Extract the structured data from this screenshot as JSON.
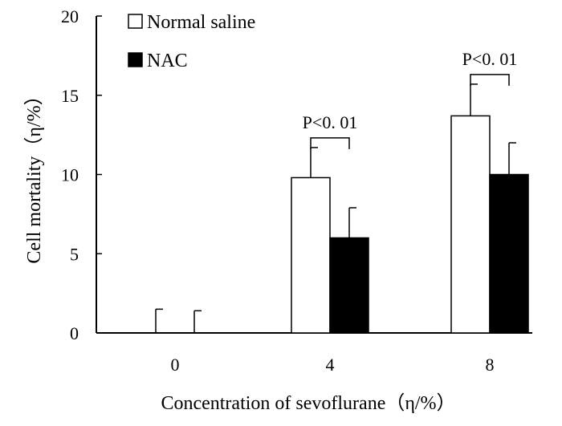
{
  "chart_data": {
    "type": "bar",
    "title": "",
    "xlabel": "Concentration of sevoflurane（η/%）",
    "ylabel": "Cell mortality（η/%）",
    "categories": [
      "0",
      "4",
      "8"
    ],
    "ylim": [
      0,
      20
    ],
    "yticks": [
      0,
      5,
      10,
      15,
      20
    ],
    "grid": false,
    "legend_position": "top-left",
    "series": [
      {
        "name": "Normal saline",
        "color": "#ffffff",
        "values": [
          0,
          9.8,
          13.7
        ],
        "errors": [
          1.5,
          1.9,
          2.0
        ]
      },
      {
        "name": "NAC",
        "color": "#000000",
        "values": [
          0,
          6.0,
          10.0
        ],
        "errors": [
          1.4,
          1.9,
          2.0
        ]
      }
    ],
    "annotations": [
      {
        "category": "4",
        "text": "P<0. 01"
      },
      {
        "category": "8",
        "text": "P<0. 01"
      }
    ]
  }
}
